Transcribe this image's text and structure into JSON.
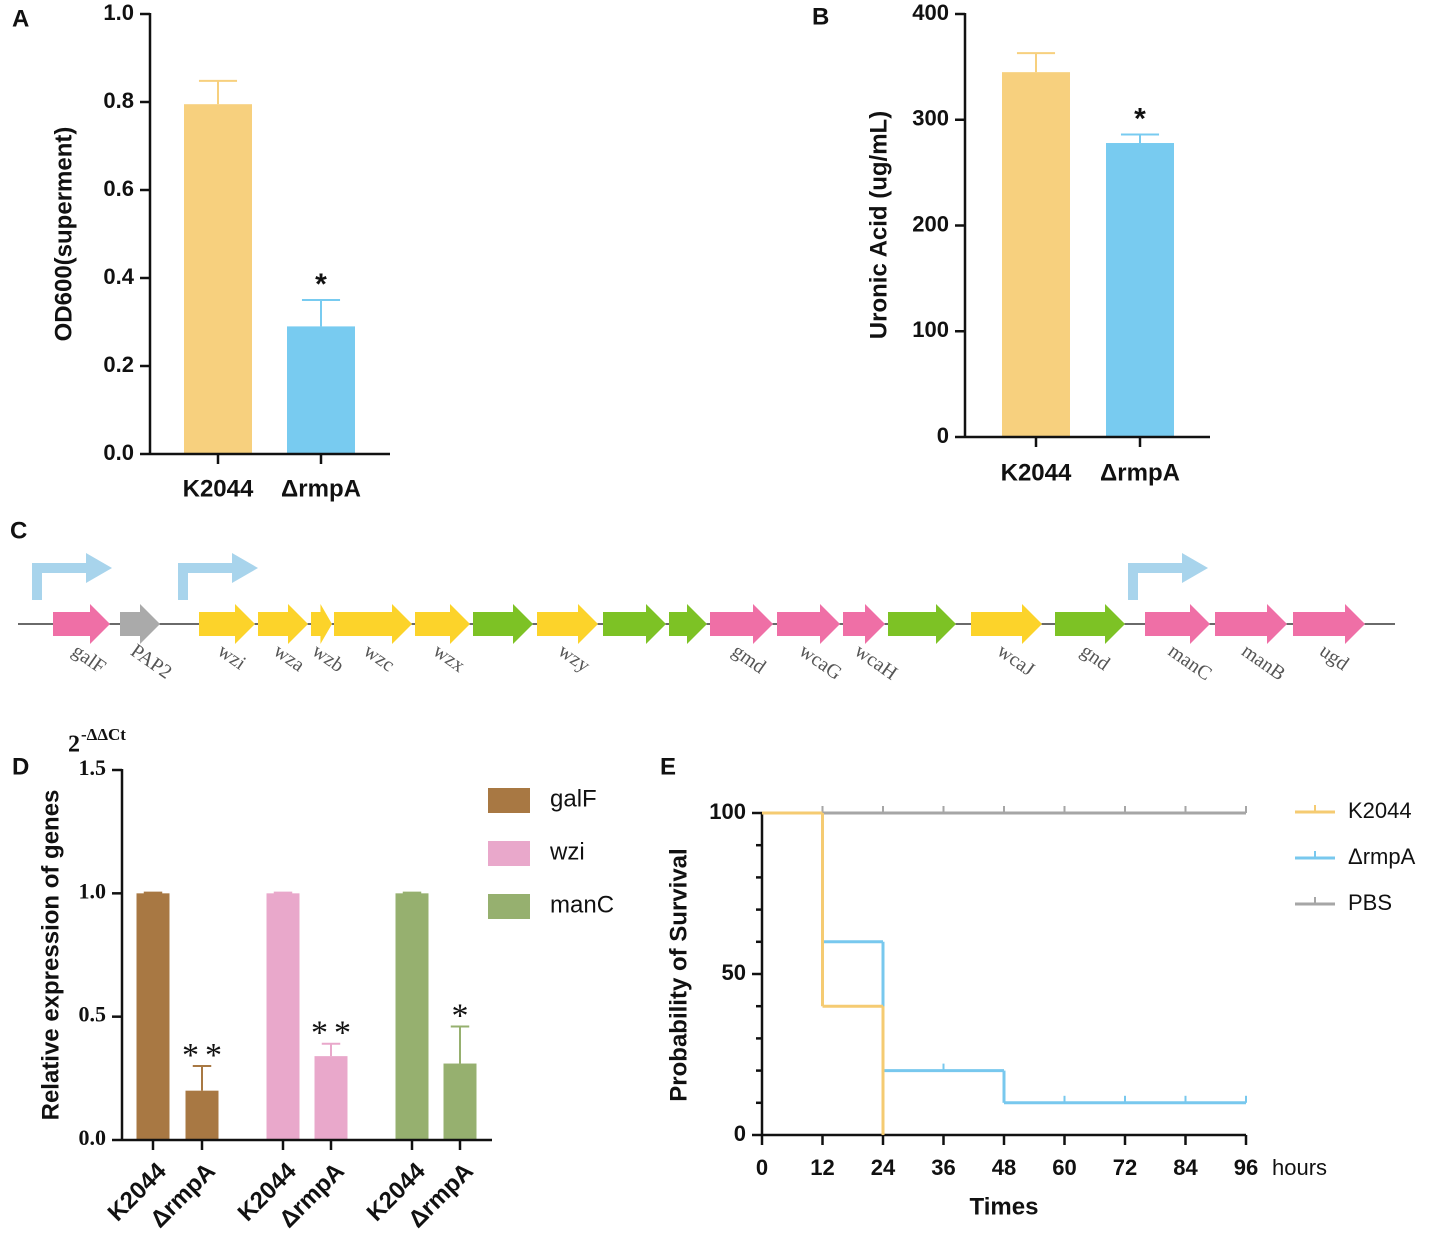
{
  "chart_data": [
    {
      "type": "bar",
      "label": "A",
      "ylabel": "OD600(superment)",
      "categories": [
        "K2044",
        "ΔrmpA"
      ],
      "values": [
        0.795,
        0.29
      ],
      "errors": [
        0.053,
        0.06
      ],
      "colors": [
        "#f7d07e",
        "#78cbf0"
      ],
      "ylim": [
        0,
        1
      ],
      "yticks": [
        {
          "value": 0,
          "label": "0.0"
        },
        0.2,
        0.4,
        0.6,
        0.8,
        {
          "value": 1,
          "label": "1.0"
        }
      ],
      "annotations": [
        {
          "text": "*",
          "category": 1
        }
      ]
    },
    {
      "type": "bar",
      "label": "B",
      "ylabel": "Uronic Acid  (ug/mL)",
      "categories": [
        "K2044",
        "ΔrmpA"
      ],
      "values": [
        345,
        278
      ],
      "errors": [
        18,
        8
      ],
      "colors": [
        "#f7d07e",
        "#78cbf0"
      ],
      "ylim": [
        0,
        400
      ],
      "yticks": [
        0,
        100,
        200,
        300,
        400
      ],
      "annotations": [
        {
          "text": "*",
          "category": 1
        }
      ]
    },
    {
      "type": "grouped_bar",
      "label": "D",
      "ylabel": "Relative expression of genes",
      "yunit": {
        "base": "2",
        "exponent": "-ΔΔCt"
      },
      "categories": [
        "K2044",
        "ΔrmpA"
      ],
      "series": [
        {
          "name": "galF",
          "color": "#a87843",
          "values": [
            1,
            0.2
          ],
          "errors": [
            0.003,
            0.1
          ],
          "annotations": [
            {
              "text": "**",
              "category": 1
            }
          ]
        },
        {
          "name": "wzi",
          "color": "#e9a8cb",
          "values": [
            1,
            0.34
          ],
          "errors": [
            0.003,
            0.05
          ],
          "annotations": [
            {
              "text": "**",
              "category": 1
            }
          ]
        },
        {
          "name": "manC",
          "color": "#96b06f",
          "values": [
            1,
            0.31
          ],
          "errors": [
            0.003,
            0.15
          ],
          "annotations": [
            {
              "text": "*",
              "category": 1
            }
          ]
        }
      ],
      "ylim": [
        0,
        1.5
      ],
      "yticks": [
        {
          "value": 0,
          "label": "0.0"
        },
        0.5,
        {
          "value": 1,
          "label": "1.0"
        },
        1.5
      ],
      "legend": "upper right"
    },
    {
      "type": "step",
      "label": "E",
      "ylabel": "Probability of Survival",
      "xlabel": "Times",
      "xunit": "hours",
      "series": [
        {
          "name": "K2044",
          "color": "#f5cb72",
          "x": [
            0,
            12,
            24
          ],
          "values": [
            100,
            40,
            0
          ]
        },
        {
          "name": "ΔrmpA",
          "color": "#78c8ee",
          "x": [
            0,
            12,
            24,
            48,
            96
          ],
          "values": [
            100,
            60,
            20,
            10,
            10
          ],
          "censored": [
            36,
            60,
            72,
            84,
            96
          ]
        },
        {
          "name": "PBS",
          "color": "#a6a6a6",
          "x": [
            0,
            96
          ],
          "values": [
            100,
            100
          ],
          "censored": [
            12,
            24,
            36,
            48,
            60,
            72,
            84,
            96
          ]
        }
      ],
      "xlim": [
        0,
        96
      ],
      "xticks": [
        0,
        12,
        24,
        36,
        48,
        60,
        72,
        84,
        96
      ],
      "ylim": [
        0,
        100
      ],
      "yticks": [
        0,
        50,
        100
      ],
      "legend": "upper right"
    }
  ],
  "gene_map": {
    "label": "C",
    "promoter_color": "#a8d4ec",
    "genes": [
      {
        "label": "galF",
        "color": "#ef6fa6"
      },
      {
        "label": "PAP2",
        "color": "#aaaaaa"
      },
      {
        "label": "wzi",
        "color": "#fcd32a"
      },
      {
        "label": "wza",
        "color": "#fcd32a"
      },
      {
        "label": "wzb",
        "color": "#fcd32a"
      },
      {
        "label": "wzc",
        "color": "#fcd32a"
      },
      {
        "label": "wzx",
        "color": "#fcd32a"
      },
      {
        "color": "#7dc225"
      },
      {
        "label": "wzy",
        "color": "#fcd32a"
      },
      {
        "color": "#7dc225"
      },
      {
        "color": "#7dc225"
      },
      {
        "label": "gmd",
        "color": "#ef6fa6"
      },
      {
        "label": "wcaG",
        "color": "#ef6fa6"
      },
      {
        "label": "wcaH",
        "color": "#ef6fa6"
      },
      {
        "color": "#7dc225"
      },
      {
        "label": "wcaJ",
        "color": "#fcd32a"
      },
      {
        "label": "gnd",
        "color": "#7dc225"
      },
      {
        "label": "manC",
        "color": "#ef6fa6"
      },
      {
        "label": "manB",
        "color": "#ef6fa6"
      },
      {
        "label": "ugd",
        "color": "#ef6fa6"
      }
    ]
  }
}
